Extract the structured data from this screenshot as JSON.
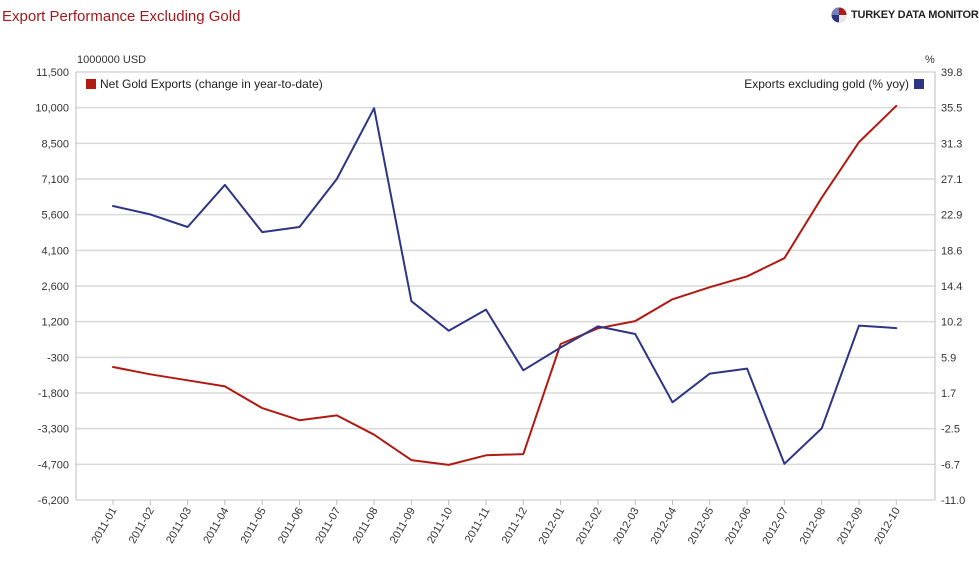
{
  "header": {
    "title": "Export Performance Excluding Gold",
    "brand": "TURKEY DATA MONITOR"
  },
  "colors": {
    "gold_series": "#b11a12",
    "exports_series": "#2e3584",
    "grid": "#d9d9d9",
    "axis_text": "#333333"
  },
  "chart_data": {
    "type": "line",
    "y_left_label": "1000000 USD",
    "y_right_label": "%",
    "x": [
      "2011-01",
      "2011-02",
      "2011-03",
      "2011-04",
      "2011-05",
      "2011-06",
      "2011-07",
      "2011-08",
      "2011-09",
      "2011-10",
      "2011-11",
      "2011-12",
      "2012-01",
      "2012-02",
      "2012-03",
      "2012-04",
      "2012-05",
      "2012-06",
      "2012-07",
      "2012-08",
      "2012-09",
      "2012-10"
    ],
    "y_left_ticks": [
      "11,500",
      "10,000",
      "8,500",
      "7,100",
      "5,600",
      "4,100",
      "2,600",
      "1,200",
      "-300",
      "-1,800",
      "-3,300",
      "-4,700",
      "-6,200"
    ],
    "y_right_ticks": [
      "39.8",
      "35.5",
      "31.3",
      "27.1",
      "22.9",
      "18.6",
      "14.4",
      "10.2",
      "5.9",
      "1.7",
      "-2.5",
      "-6.7",
      "-11.0"
    ],
    "y_left_range": [
      -6200,
      11500
    ],
    "y_right_range": [
      -11.0,
      39.8
    ],
    "legend_left_position": "top-left",
    "legend_right_position": "top-right",
    "grid": true,
    "series": [
      {
        "name": "Net Gold Exports (change in year-to-date)",
        "axis": "left",
        "values": [
          -700,
          -1000,
          -1250,
          -1500,
          -2400,
          -2900,
          -2700,
          -3500,
          -4550,
          -4750,
          -4350,
          -4300,
          250,
          900,
          1200,
          2100,
          2600,
          3050,
          3800,
          6300,
          8600,
          10100
        ]
      },
      {
        "name": "Exports excluding gold (% yoy)",
        "axis": "right",
        "values": [
          23.9,
          22.9,
          21.4,
          26.4,
          20.8,
          21.4,
          27.1,
          35.5,
          12.6,
          9.1,
          11.6,
          4.4,
          7.1,
          9.6,
          8.7,
          0.6,
          4.0,
          4.6,
          -6.7,
          -2.5,
          9.7,
          9.4
        ]
      }
    ]
  }
}
